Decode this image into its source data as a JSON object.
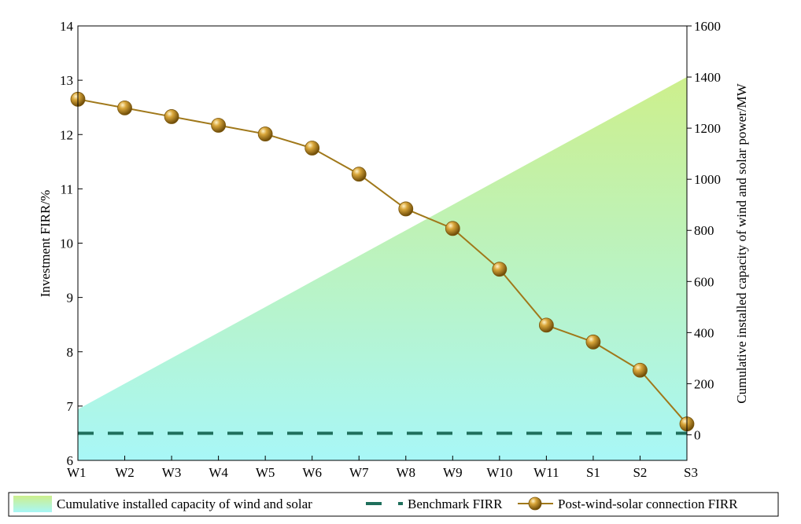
{
  "chart_data": {
    "type": "line",
    "title": "",
    "categories": [
      "W1",
      "W2",
      "W3",
      "W4",
      "W5",
      "W6",
      "W7",
      "W8",
      "W9",
      "W10",
      "W11",
      "S1",
      "S2",
      "S3"
    ],
    "left_axis": {
      "label": "Investment FIRR/%",
      "ylim": [
        6,
        14
      ],
      "ticks": [
        "6",
        "7",
        "8",
        "9",
        "10",
        "11",
        "12",
        "13",
        "14"
      ]
    },
    "right_axis": {
      "label": "Cumulative installed capacity of wind and solar power/MW",
      "ylim": [
        -100,
        1600
      ],
      "ticks": [
        "0",
        "200",
        "400",
        "600",
        "800",
        "1000",
        "1200",
        "1400",
        "1600"
      ]
    },
    "series": [
      {
        "name": "Cumulative installed capacity of wind and solar",
        "type": "area",
        "axis": "right",
        "values": [
          100,
          200,
          300,
          400,
          500,
          600,
          700,
          800,
          900,
          1000,
          1100,
          1200,
          1300,
          1400
        ],
        "color_top": "#cdef8c",
        "color_bottom": "#a8f7f7"
      },
      {
        "name": "Benchmark FIRR",
        "type": "dashed-line",
        "axis": "left",
        "values": [
          6.5,
          6.5,
          6.5,
          6.5,
          6.5,
          6.5,
          6.5,
          6.5,
          6.5,
          6.5,
          6.5,
          6.5,
          6.5,
          6.5
        ],
        "color": "#1f6f5c"
      },
      {
        "name": "Post-wind-solar connection FIRR",
        "type": "line-marker",
        "axis": "left",
        "values": [
          12.65,
          12.49,
          12.33,
          12.17,
          12.01,
          11.75,
          11.27,
          10.63,
          10.27,
          9.52,
          8.49,
          8.18,
          7.66,
          6.67
        ],
        "color": "#a0781a"
      }
    ],
    "grid": false,
    "legend": {
      "position": "bottom"
    }
  }
}
